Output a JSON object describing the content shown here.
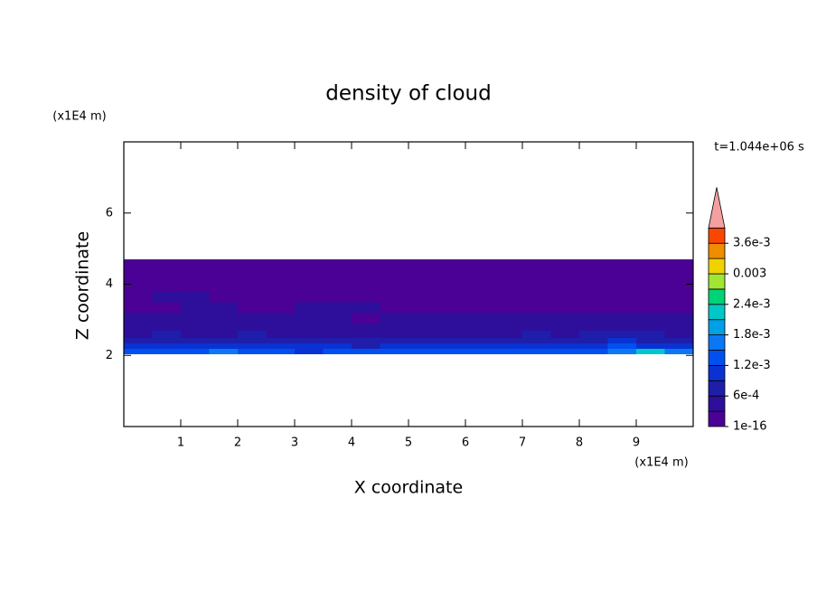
{
  "chart_data": {
    "type": "contour",
    "title": "density of cloud",
    "xlabel": "X coordinate",
    "ylabel": "Z coordinate",
    "x_unit": "(x1E4 m)",
    "y_unit": "(x1E4 m)",
    "time_label": "t=1.044e+06 s",
    "xlim": [
      0,
      10
    ],
    "ylim": [
      0,
      8
    ],
    "xticks": [
      1,
      2,
      3,
      4,
      5,
      6,
      7,
      8,
      9
    ],
    "yticks": [
      2,
      4,
      6
    ],
    "x_edges": [
      0,
      0.5,
      1,
      1.5,
      2,
      2.5,
      3,
      3.5,
      4,
      4.5,
      5,
      5.5,
      6,
      6.5,
      7,
      7.5,
      8,
      8.5,
      9,
      9.5,
      10
    ],
    "z_edges": [
      2.05,
      2.2,
      2.35,
      2.5,
      2.7,
      2.9,
      3.2,
      3.5,
      3.8,
      4.2,
      4.7
    ],
    "values": [
      [
        0.0012,
        0.0014,
        0.0013,
        0.0015,
        0.0012,
        0.0013,
        0.0011,
        0.0012,
        0.0013,
        0.0014,
        0.0013,
        0.0012,
        0.0012,
        0.0013,
        0.0014,
        0.0012,
        0.0013,
        0.0015,
        0.0022,
        0.0016
      ],
      [
        0.001,
        0.0011,
        0.0009,
        0.001,
        0.0011,
        0.0009,
        0.001,
        0.0009,
        0.0008,
        0.0009,
        0.001,
        0.0009,
        0.001,
        0.0011,
        0.001,
        0.001,
        0.0011,
        0.0012,
        0.0011,
        0.001
      ],
      [
        0.0007,
        0.0008,
        0.0007,
        0.0007,
        0.0008,
        0.0007,
        0.0006,
        0.0007,
        0.0006,
        0.0007,
        0.0007,
        0.0006,
        0.0007,
        0.0007,
        0.0008,
        0.0007,
        0.0008,
        0.0009,
        0.0008,
        0.0007
      ],
      [
        0.0005,
        0.0006,
        0.0005,
        0.0005,
        0.0006,
        0.0005,
        0.0005,
        0.0004,
        0.0005,
        0.0004,
        0.0005,
        0.0004,
        0.0005,
        0.0005,
        0.0006,
        0.0005,
        0.0006,
        0.0007,
        0.0006,
        0.0005
      ],
      [
        0.0004,
        0.0004,
        0.0004,
        0.0005,
        0.0004,
        0.0004,
        0.0003,
        0.0004,
        0.0003,
        0.0004,
        0.0003,
        0.0004,
        0.0004,
        0.0004,
        0.0004,
        0.0005,
        0.0004,
        0.0005,
        0.0004,
        0.0004
      ],
      [
        0.0003,
        0.0003,
        0.0004,
        0.0003,
        0.0003,
        0.0003,
        0.0003,
        0.0003,
        0.0002,
        0.0003,
        0.0003,
        0.0003,
        0.0003,
        0.0003,
        0.0003,
        0.0003,
        0.0003,
        0.0003,
        0.0003,
        0.0003
      ],
      [
        0.0002,
        0.0002,
        0.0003,
        0.0003,
        0.0002,
        0.0002,
        0.0003,
        0.0003,
        0.0003,
        0.0002,
        0.0002,
        0.0002,
        0.0002,
        0.0002,
        0.0002,
        0.0002,
        0.0002,
        0.0002,
        0.0002,
        0.0002
      ],
      [
        0.0002,
        0.0003,
        0.0003,
        0.0002,
        0.0002,
        0.0002,
        0.0002,
        0.0002,
        0.0002,
        0.0002,
        0.0002,
        0.0002,
        0.0002,
        0.0002,
        0.0002,
        0.0002,
        0.0002,
        0.0002,
        0.0002,
        0.0002
      ],
      [
        0.0001,
        0.0001,
        0.0001,
        0.0001,
        0.0001,
        0.0001,
        0.0001,
        0.0001,
        0.0001,
        0.0001,
        0.0001,
        0.0001,
        0.0001,
        0.0001,
        0.0001,
        0.0001,
        0.0001,
        0.0001,
        0.0001,
        0.0001
      ],
      [
        0.0001,
        0.0001,
        0.0001,
        0.0001,
        0.0001,
        0.0001,
        0.0001,
        0.0001,
        0.0001,
        0.0001,
        0.0001,
        0.0001,
        0.0001,
        0.0001,
        0.0001,
        0.0001,
        0.0001,
        0.0001,
        0.0001,
        0.0001
      ]
    ],
    "colorbar": {
      "levels": [
        1e-16,
        0.0003,
        0.0006,
        0.0009,
        0.0012,
        0.0015,
        0.0018,
        0.0021,
        0.0024,
        0.0027,
        0.003,
        0.0033,
        0.0036,
        0.0039
      ],
      "colors": [
        "#4b0096",
        "#2d0f9b",
        "#1e1eaa",
        "#0a32d2",
        "#0050f0",
        "#0a78f5",
        "#00a0e6",
        "#00c8c8",
        "#00d278",
        "#a0e632",
        "#f0d200",
        "#f08c00",
        "#fa4600"
      ],
      "extend_color": "#f4a0a0",
      "ticks": [
        {
          "value": 1e-16,
          "label": "1e-16"
        },
        {
          "value": 0.0006,
          "label": "6e-4"
        },
        {
          "value": 0.0012,
          "label": "1.2e-3"
        },
        {
          "value": 0.0018,
          "label": "1.8e-3"
        },
        {
          "value": 0.0024,
          "label": "2.4e-3"
        },
        {
          "value": 0.003,
          "label": "0.003"
        },
        {
          "value": 0.0036,
          "label": "3.6e-3"
        }
      ]
    }
  }
}
